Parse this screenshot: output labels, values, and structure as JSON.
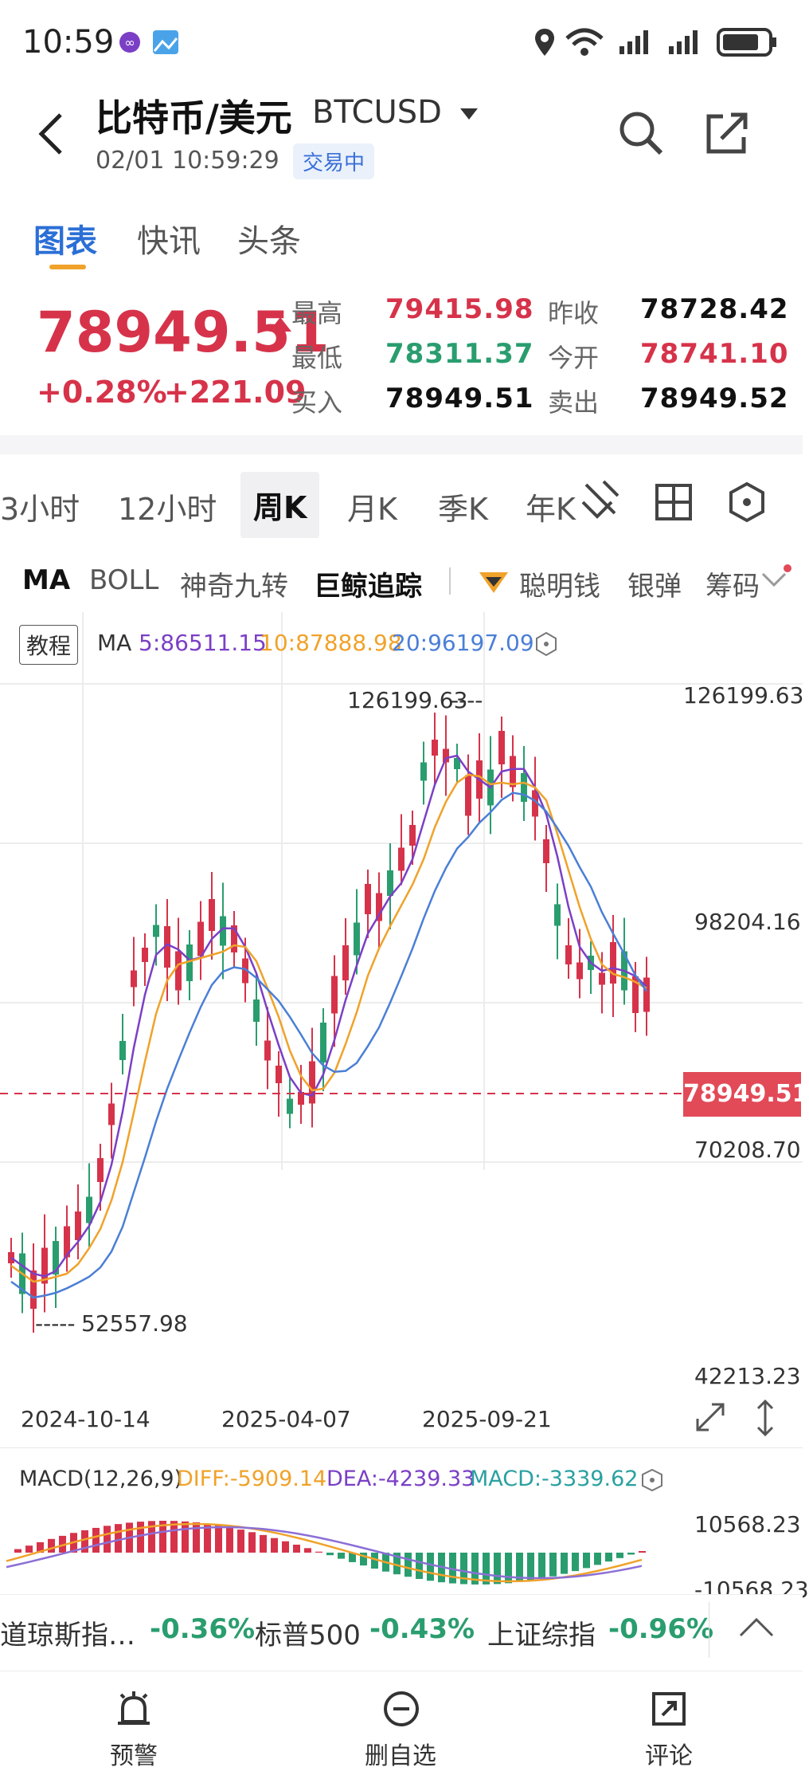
{
  "status": {
    "time": "10:59"
  },
  "header": {
    "title": "比特币/美元",
    "code": "BTCUSD",
    "datetime": "02/01 10:59:29",
    "badge": "交易中"
  },
  "tabs": [
    "图表",
    "快讯",
    "头条"
  ],
  "quote": {
    "price": "78949.51",
    "change_pct": "+0.28%",
    "change_abs": "+221.09",
    "high_label": "最高",
    "high": "79415.98",
    "low_label": "最低",
    "low": "78311.37",
    "bid_label": "买入",
    "bid": "78949.51",
    "prev_label": "昨收",
    "prev": "78728.42",
    "open_label": "今开",
    "open": "78741.10",
    "ask_label": "卖出",
    "ask": "78949.52"
  },
  "periods": [
    "3小时",
    "12小时",
    "周K",
    "月K",
    "季K",
    "年K"
  ],
  "indicators": [
    "MA",
    "BOLL",
    "神奇九转",
    "巨鲸追踪",
    "聪明钱",
    "银弹",
    "筹码"
  ],
  "ma_panel": {
    "tutorial": "教程",
    "label": "MA",
    "ma5": "5:86511.15",
    "ma10": "10:87888.98",
    "ma20": "20:96197.09"
  },
  "chart_data": {
    "type": "candlestick",
    "y_ticks": [
      "126199.63",
      "98204.16",
      "70208.70",
      "42213.23"
    ],
    "high_mark": "126199.63",
    "low_mark": "52557.98",
    "current": "78949.51",
    "x_ticks": [
      "2024-10-14",
      "2025-04-07",
      "2025-09-21"
    ],
    "ylim": [
      42213.23,
      126199.63
    ]
  },
  "macd": {
    "label": "MACD(12,26,9)",
    "diff": "DIFF:-5909.14",
    "dea": "DEA:-4239.33",
    "macd": "MACD:-3339.62",
    "top": "10568.23",
    "bottom": "-10568.23"
  },
  "tickers": [
    {
      "name": "道琼斯指…",
      "val": "-0.36%"
    },
    {
      "name": "标普500",
      "val": "-0.43%"
    },
    {
      "name": "上证综指",
      "val": "-0.96%"
    }
  ],
  "nav": [
    "预警",
    "删自选",
    "评论"
  ],
  "colors": {
    "up": "#d6334a",
    "down": "#2a9d6f",
    "blue": "#2b6fd6",
    "ma5": "#7b3fc6",
    "ma10": "#f0a22a",
    "ma20": "#4a7fd6"
  }
}
